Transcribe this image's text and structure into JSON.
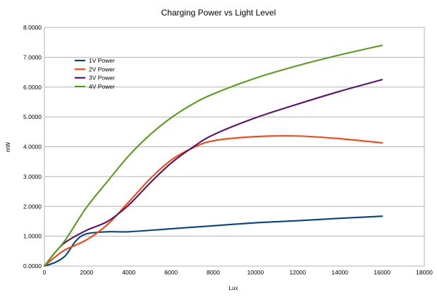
{
  "chart_data": {
    "type": "line",
    "title": "Charging Power vs Light Level",
    "xlabel": "Lux",
    "ylabel": "mW",
    "xlim": [
      0,
      18000
    ],
    "ylim": [
      0,
      8
    ],
    "grid": true,
    "legend_position": "top-left",
    "x_ticks": [
      0,
      2000,
      4000,
      6000,
      8000,
      10000,
      12000,
      14000,
      16000,
      18000
    ],
    "x_tick_labels": [
      "0",
      "2000",
      "4000",
      "6000",
      "8000",
      "10000",
      "12000",
      "14000",
      "16000",
      "18000"
    ],
    "y_ticks": [
      0,
      1,
      2,
      3,
      4,
      5,
      6,
      7,
      8
    ],
    "y_tick_labels": [
      "0.0000",
      "1.0000",
      "2.0000",
      "3.0000",
      "4.0000",
      "5.0000",
      "6.0000",
      "7.0000",
      "8.0000"
    ],
    "series": [
      {
        "name": "1V Power",
        "color": "#004586",
        "x": [
          0,
          500,
          1000,
          1500,
          2000,
          3000,
          4000,
          6000,
          8000,
          10000,
          12000,
          14000,
          16000
        ],
        "y": [
          0,
          0.12,
          0.35,
          0.85,
          1.08,
          1.15,
          1.15,
          1.25,
          1.35,
          1.45,
          1.52,
          1.6,
          1.67
        ]
      },
      {
        "name": "2V Power",
        "color": "#ff420e",
        "x": [
          0,
          500,
          1000,
          2000,
          3000,
          4000,
          5000,
          6000,
          7000,
          8000,
          10000,
          12000,
          14000,
          16000
        ],
        "y": [
          0,
          0.3,
          0.55,
          0.88,
          1.4,
          2.15,
          2.92,
          3.55,
          3.95,
          4.2,
          4.34,
          4.36,
          4.27,
          4.13
        ]
      },
      {
        "name": "3V Power",
        "color": "#7e0021",
        "stroke": "#5b0f6a",
        "x": [
          0,
          500,
          1000,
          2000,
          3000,
          4000,
          5000,
          6000,
          7000,
          8000,
          10000,
          12000,
          14000,
          16000
        ],
        "y": [
          0,
          0.45,
          0.8,
          1.2,
          1.5,
          2.05,
          2.78,
          3.45,
          3.97,
          4.4,
          4.97,
          5.43,
          5.86,
          6.25
        ]
      },
      {
        "name": "4V Power",
        "color": "#579d1c",
        "x": [
          0,
          500,
          1000,
          2000,
          3000,
          4000,
          5000,
          6000,
          7000,
          8000,
          10000,
          12000,
          14000,
          16000
        ],
        "y": [
          0,
          0.45,
          0.88,
          1.97,
          2.85,
          3.7,
          4.4,
          4.97,
          5.42,
          5.77,
          6.3,
          6.72,
          7.08,
          7.4
        ]
      }
    ]
  }
}
